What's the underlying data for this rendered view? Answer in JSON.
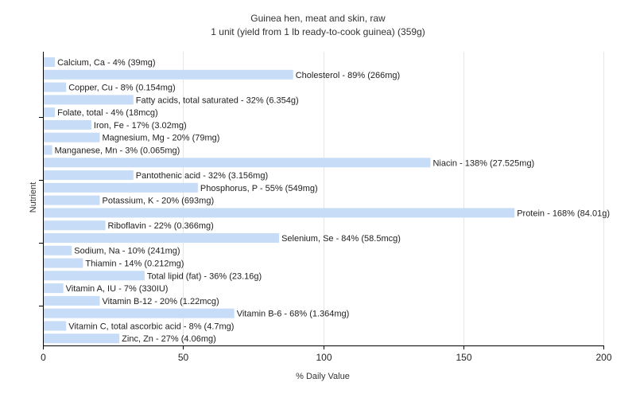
{
  "chart_data": {
    "type": "bar",
    "orientation": "horizontal",
    "title": "Guinea hen, meat and skin, raw",
    "subtitle": "1 unit (yield from 1 lb ready-to-cook guinea) (359g)",
    "xlabel": "% Daily Value",
    "ylabel": "Nutrient",
    "xlim": [
      0,
      200
    ],
    "xticks": [
      0,
      50,
      100,
      150,
      200
    ],
    "grid": true,
    "bar_color": "#c6dcf7",
    "categories": [
      "Calcium, Ca",
      "Cholesterol",
      "Copper, Cu",
      "Fatty acids, total saturated",
      "Folate, total",
      "Iron, Fe",
      "Magnesium, Mg",
      "Manganese, Mn",
      "Niacin",
      "Pantothenic acid",
      "Phosphorus, P",
      "Potassium, K",
      "Protein",
      "Riboflavin",
      "Selenium, Se",
      "Sodium, Na",
      "Thiamin",
      "Total lipid (fat)",
      "Vitamin A, IU",
      "Vitamin B-12",
      "Vitamin B-6",
      "Vitamin C, total ascorbic acid",
      "Zinc, Zn"
    ],
    "values": [
      4,
      89,
      8,
      32,
      4,
      17,
      20,
      3,
      138,
      32,
      55,
      20,
      168,
      22,
      84,
      10,
      14,
      36,
      7,
      20,
      68,
      8,
      27
    ],
    "labels": [
      "Calcium, Ca - 4% (39mg)",
      "Cholesterol - 89% (266mg)",
      "Copper, Cu - 8% (0.154mg)",
      "Fatty acids, total saturated - 32% (6.354g)",
      "Folate, total - 4% (18mcg)",
      "Iron, Fe - 17% (3.02mg)",
      "Magnesium, Mg - 20% (79mg)",
      "Manganese, Mn - 3% (0.065mg)",
      "Niacin - 138% (27.525mg)",
      "Pantothenic acid - 32% (3.156mg)",
      "Phosphorus, P - 55% (549mg)",
      "Potassium, K - 20% (693mg)",
      "Protein - 168% (84.01g)",
      "Riboflavin - 22% (0.366mg)",
      "Selenium, Se - 84% (58.5mcg)",
      "Sodium, Na - 10% (241mg)",
      "Thiamin - 14% (0.212mg)",
      "Total lipid (fat) - 36% (23.16g)",
      "Vitamin A, IU - 7% (330IU)",
      "Vitamin B-12 - 20% (1.22mcg)",
      "Vitamin B-6 - 68% (1.364mg)",
      "Vitamin C, total ascorbic acid - 8% (4.7mg)",
      "Zinc, Zn - 27% (4.06mg)"
    ]
  }
}
